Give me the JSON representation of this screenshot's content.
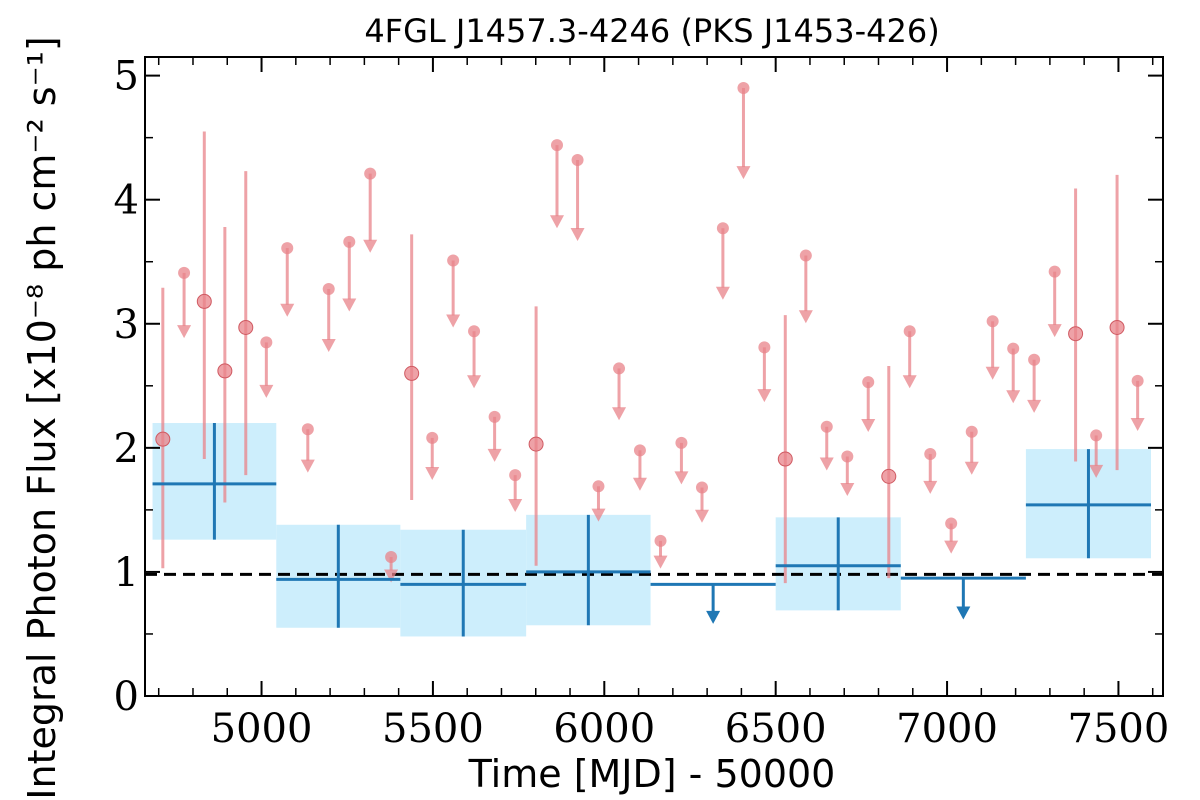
{
  "chart_data": {
    "type": "scatter",
    "title": "4FGL J1457.3-4246 (PKS J1453-426)",
    "xlabel": "Time [MJD] - 50000",
    "ylabel": "Integral Photon Flux [x10⁻⁸ ph cm⁻² s⁻¹]",
    "xlim": [
      4660,
      7630
    ],
    "ylim": [
      0,
      5.15
    ],
    "x_ticks": [
      5000,
      5500,
      6000,
      6500,
      7000,
      7500
    ],
    "x_tick_labels": [
      "5000",
      "5500",
      "6000",
      "6500",
      "7000",
      "7500"
    ],
    "y_ticks": [
      0,
      1,
      2,
      3,
      4,
      5
    ],
    "y_tick_labels": [
      "0",
      "1",
      "2",
      "3",
      "4",
      "5"
    ],
    "reference_level": 0.98,
    "series": [
      {
        "color": "#e8838a",
        "points": [
          {
            "x": 4712,
            "y": 2.07,
            "lo": 1.03,
            "hi": 3.29
          },
          {
            "x": 4774,
            "y": 3.41,
            "ul": true
          },
          {
            "x": 4833,
            "y": 3.18,
            "lo": 1.91,
            "hi": 4.55
          },
          {
            "x": 4893,
            "y": 2.62,
            "lo": 1.56,
            "hi": 3.78
          },
          {
            "x": 4954,
            "y": 2.97,
            "lo": 1.78,
            "hi": 4.23
          },
          {
            "x": 5014,
            "y": 2.85,
            "ul": true
          },
          {
            "x": 5075,
            "y": 3.61,
            "ul": true
          },
          {
            "x": 5135,
            "y": 2.15,
            "ul": true
          },
          {
            "x": 5196,
            "y": 3.28,
            "ul": true
          },
          {
            "x": 5256,
            "y": 3.66,
            "ul": true
          },
          {
            "x": 5317,
            "y": 4.21,
            "ul": true
          },
          {
            "x": 5378,
            "y": 1.12,
            "ul": true
          },
          {
            "x": 5438,
            "y": 2.6,
            "lo": 1.58,
            "hi": 3.72
          },
          {
            "x": 5498,
            "y": 2.08,
            "ul": true
          },
          {
            "x": 5559,
            "y": 3.51,
            "ul": true
          },
          {
            "x": 5620,
            "y": 2.94,
            "ul": true
          },
          {
            "x": 5680,
            "y": 2.25,
            "ul": true
          },
          {
            "x": 5740,
            "y": 1.78,
            "ul": true
          },
          {
            "x": 5801,
            "y": 2.03,
            "lo": 1.05,
            "hi": 3.14
          },
          {
            "x": 5862,
            "y": 4.44,
            "ul": true
          },
          {
            "x": 5922,
            "y": 4.32,
            "ul": true
          },
          {
            "x": 5983,
            "y": 1.69,
            "ul": true
          },
          {
            "x": 6043,
            "y": 2.64,
            "ul": true
          },
          {
            "x": 6104,
            "y": 1.98,
            "ul": true
          },
          {
            "x": 6164,
            "y": 1.25,
            "ul": true
          },
          {
            "x": 6225,
            "y": 2.04,
            "ul": true
          },
          {
            "x": 6285,
            "y": 1.68,
            "ul": true
          },
          {
            "x": 6346,
            "y": 3.77,
            "ul": true
          },
          {
            "x": 6406,
            "y": 4.9,
            "ul": true
          },
          {
            "x": 6467,
            "y": 2.81,
            "ul": true
          },
          {
            "x": 6528,
            "y": 1.91,
            "lo": 0.91,
            "hi": 3.07
          },
          {
            "x": 6588,
            "y": 3.55,
            "ul": true
          },
          {
            "x": 6649,
            "y": 2.17,
            "ul": true
          },
          {
            "x": 6709,
            "y": 1.93,
            "ul": true
          },
          {
            "x": 6770,
            "y": 2.53,
            "ul": true
          },
          {
            "x": 6830,
            "y": 1.77,
            "lo": 0.95,
            "hi": 2.66
          },
          {
            "x": 6891,
            "y": 2.94,
            "ul": true
          },
          {
            "x": 6951,
            "y": 1.95,
            "ul": true
          },
          {
            "x": 7012,
            "y": 1.39,
            "ul": true
          },
          {
            "x": 7072,
            "y": 2.13,
            "ul": true
          },
          {
            "x": 7133,
            "y": 3.02,
            "ul": true
          },
          {
            "x": 7193,
            "y": 2.8,
            "ul": true
          },
          {
            "x": 7254,
            "y": 2.71,
            "ul": true
          },
          {
            "x": 7314,
            "y": 3.42,
            "ul": true
          },
          {
            "x": 7375,
            "y": 2.92,
            "lo": 1.89,
            "hi": 4.09
          },
          {
            "x": 7435,
            "y": 2.1,
            "ul": true
          },
          {
            "x": 7496,
            "y": 2.97,
            "lo": 1.82,
            "hi": 4.2
          },
          {
            "x": 7556,
            "y": 2.54,
            "ul": true
          }
        ]
      },
      {
        "color": "#1f77b4",
        "band_color": "#cdeefc",
        "points": [
          {
            "x0": 4682,
            "x1": 5043,
            "y": 1.71,
            "lo": 1.26,
            "hi": 2.2
          },
          {
            "x0": 5043,
            "x1": 5405,
            "y": 0.94,
            "lo": 0.55,
            "hi": 1.38
          },
          {
            "x0": 5405,
            "x1": 5772,
            "y": 0.9,
            "lo": 0.48,
            "hi": 1.34
          },
          {
            "x0": 5772,
            "x1": 6135,
            "y": 1.0,
            "lo": 0.57,
            "hi": 1.46
          },
          {
            "x0": 6135,
            "x1": 6500,
            "y": 0.9,
            "ul": true
          },
          {
            "x0": 6500,
            "x1": 6865,
            "y": 1.05,
            "lo": 0.69,
            "hi": 1.44
          },
          {
            "x0": 6865,
            "x1": 7230,
            "y": 0.95,
            "ul": true
          },
          {
            "x0": 7230,
            "x1": 7595,
            "y": 1.54,
            "lo": 1.11,
            "hi": 1.99
          }
        ]
      }
    ]
  }
}
